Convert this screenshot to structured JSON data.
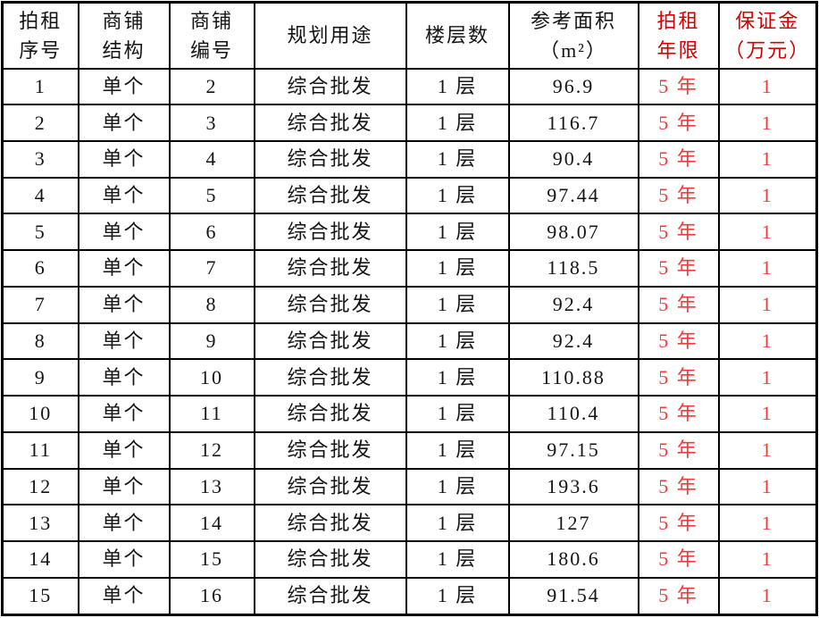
{
  "table": {
    "columns": [
      {
        "key": "seq",
        "label": "拍租\n序号",
        "red": false
      },
      {
        "key": "structure",
        "label": "商铺\n结构",
        "red": false
      },
      {
        "key": "shop_no",
        "label": "商铺\n编号",
        "red": false
      },
      {
        "key": "use",
        "label": "规划用途",
        "red": false
      },
      {
        "key": "floors",
        "label": "楼层数",
        "red": false
      },
      {
        "key": "area",
        "label": "参考面积\n（m²）",
        "red": false
      },
      {
        "key": "term",
        "label": "拍租\n年限",
        "red": true
      },
      {
        "key": "deposit",
        "label": "保证金\n（万元）",
        "red": true
      }
    ],
    "rows": [
      [
        "1",
        "单个",
        "2",
        "综合批发",
        "1 层",
        "96.9",
        "5 年",
        "1"
      ],
      [
        "2",
        "单个",
        "3",
        "综合批发",
        "1 层",
        "116.7",
        "5 年",
        "1"
      ],
      [
        "3",
        "单个",
        "4",
        "综合批发",
        "1 层",
        "90.4",
        "5 年",
        "1"
      ],
      [
        "4",
        "单个",
        "5",
        "综合批发",
        "1 层",
        "97.44",
        "5 年",
        "1"
      ],
      [
        "5",
        "单个",
        "6",
        "综合批发",
        "1 层",
        "98.07",
        "5 年",
        "1"
      ],
      [
        "6",
        "单个",
        "7",
        "综合批发",
        "1 层",
        "118.5",
        "5 年",
        "1"
      ],
      [
        "7",
        "单个",
        "8",
        "综合批发",
        "1 层",
        "92.4",
        "5 年",
        "1"
      ],
      [
        "8",
        "单个",
        "9",
        "综合批发",
        "1 层",
        "92.4",
        "5 年",
        "1"
      ],
      [
        "9",
        "单个",
        "10",
        "综合批发",
        "1 层",
        "110.88",
        "5 年",
        "1"
      ],
      [
        "10",
        "单个",
        "11",
        "综合批发",
        "1 层",
        "110.4",
        "5 年",
        "1"
      ],
      [
        "11",
        "单个",
        "12",
        "综合批发",
        "1 层",
        "97.15",
        "5 年",
        "1"
      ],
      [
        "12",
        "单个",
        "13",
        "综合批发",
        "1 层",
        "193.6",
        "5 年",
        "1"
      ],
      [
        "13",
        "单个",
        "14",
        "综合批发",
        "1 层",
        "127",
        "5 年",
        "1"
      ],
      [
        "14",
        "单个",
        "15",
        "综合批发",
        "1 层",
        "180.6",
        "5 年",
        "1"
      ],
      [
        "15",
        "单个",
        "16",
        "综合批发",
        "1 层",
        "91.54",
        "5 年",
        "1"
      ]
    ]
  },
  "colors": {
    "background": "#ffffff",
    "border": "#000000",
    "text": "#141414",
    "header_red": "#d40000",
    "data_red": "#f23b3b"
  }
}
